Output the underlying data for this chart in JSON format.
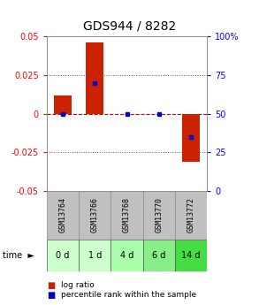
{
  "title": "GDS944 / 8282",
  "samples": [
    "GSM13764",
    "GSM13766",
    "GSM13768",
    "GSM13770",
    "GSM13772"
  ],
  "time_labels": [
    "0 d",
    "1 d",
    "4 d",
    "6 d",
    "14 d"
  ],
  "log_ratios": [
    0.012,
    0.046,
    0.0,
    0.0,
    -0.031
  ],
  "percentile_ranks": [
    50,
    70,
    50,
    50,
    35
  ],
  "ylim_left": [
    -0.05,
    0.05
  ],
  "ylim_right": [
    0,
    100
  ],
  "yticks_left": [
    -0.05,
    -0.025,
    0,
    0.025,
    0.05
  ],
  "yticks_right": [
    0,
    25,
    50,
    75,
    100
  ],
  "bar_color": "#cc2200",
  "dot_color": "#0000cc",
  "grid_color": "#333333",
  "zero_line_color": "#cc0000",
  "bg_color": "#ffffff",
  "plot_bg": "#ffffff",
  "sample_bg": "#c0c0c0",
  "time_bg_colors": [
    "#ccffcc",
    "#ccffcc",
    "#aaffaa",
    "#88ee88",
    "#44dd44"
  ],
  "title_fontsize": 10,
  "bar_width": 0.55
}
